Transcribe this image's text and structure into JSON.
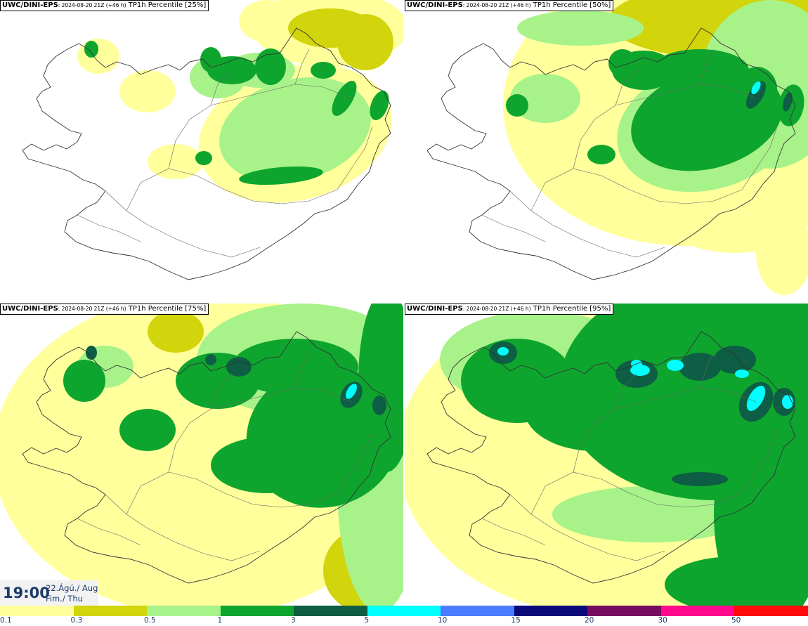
{
  "panels": [
    {
      "model": "UWC/DINI-EPS",
      "run": ": 2024-08-20 21Z (+46 h)",
      "product": " TP1h Percentile [25%]",
      "percentile": 25
    },
    {
      "model": "UWC/DINI-EPS",
      "run": ": 2024-08-20 21Z (+46 h)",
      "product": " TP1h Percentile [50%]",
      "percentile": 50
    },
    {
      "model": "UWC/DINI-EPS",
      "run": ": 2024-08-20 21Z (+46 h)",
      "product": " TP1h Percentile [75%]",
      "percentile": 75
    },
    {
      "model": "UWC/DINI-EPS",
      "run": ": 2024-08-20 21Z (+46 h)",
      "product": " TP1h Percentile [95%]",
      "percentile": 95
    }
  ],
  "valid_time": {
    "time": "19:00",
    "date_line1": "22.Ágú./ Aug",
    "date_line2": "Fim./ Thu"
  },
  "legend": {
    "bins": [
      {
        "label": "0.1",
        "color": "#ffff9c"
      },
      {
        "label": "0.3",
        "color": "#d2d40c"
      },
      {
        "label": "0.5",
        "color": "#a8f28a"
      },
      {
        "label": "1",
        "color": "#0ea52e"
      },
      {
        "label": "3",
        "color": "#0d5e44"
      },
      {
        "label": "5",
        "color": "#00ffff"
      },
      {
        "label": "10",
        "color": "#4a7cff"
      },
      {
        "label": "15",
        "color": "#0a0a7a"
      },
      {
        "label": "20",
        "color": "#760a5e"
      },
      {
        "label": "30",
        "color": "#ff0a8c"
      },
      {
        "label": "50",
        "color": "#ff0a0a"
      }
    ]
  }
}
